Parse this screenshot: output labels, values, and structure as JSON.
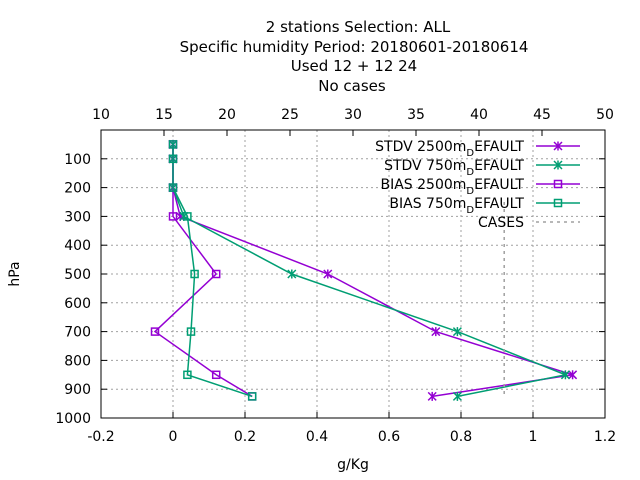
{
  "chart_data": {
    "type": "line",
    "title_lines": [
      "2 stations Selection: ALL",
      "Specific humidity  Period: 20180601-20180614",
      "Used  12 + 12 24",
      "No cases"
    ],
    "xlabel": "g/Kg",
    "ylabel": "hPa",
    "x_range": [
      -0.2,
      1.2
    ],
    "x_ticks": [
      "-0.2",
      "0",
      "0.2",
      "0.4",
      "0.6",
      "0.8",
      "1",
      "1.2"
    ],
    "x2_range": [
      10,
      50
    ],
    "x2_ticks": [
      "10",
      "15",
      "20",
      "25",
      "30",
      "35",
      "40",
      "45",
      "50"
    ],
    "y_range": [
      0,
      1000
    ],
    "y_reversed": true,
    "y_ticks": [
      "100",
      "200",
      "300",
      "400",
      "500",
      "600",
      "700",
      "800",
      "900",
      "1000"
    ],
    "grid": true,
    "legend_position": "top-right",
    "series": [
      {
        "name": "STDV 2500m",
        "name_sub": "D",
        "name_suffix": "EFAULT",
        "color": "#9400d3",
        "marker": "cross",
        "x": [
          0.0,
          0.0,
          0.0,
          0.02,
          0.43,
          0.73,
          1.11,
          0.72
        ],
        "y": [
          50,
          100,
          200,
          300,
          500,
          700,
          850,
          925
        ]
      },
      {
        "name": "STDV 750m",
        "name_sub": "D",
        "name_suffix": "EFAULT",
        "color": "#009e73",
        "marker": "cross",
        "x": [
          0.0,
          0.0,
          0.0,
          0.03,
          0.33,
          0.79,
          1.09,
          0.79
        ],
        "y": [
          50,
          100,
          200,
          300,
          500,
          700,
          850,
          925
        ]
      },
      {
        "name": "BIAS 2500m",
        "name_sub": "D",
        "name_suffix": "EFAULT",
        "color": "#9400d3",
        "marker": "square",
        "x": [
          0.0,
          0.0,
          0.0,
          0.0,
          0.12,
          -0.05,
          0.12,
          0.22
        ],
        "y": [
          50,
          100,
          200,
          300,
          500,
          700,
          850,
          925
        ]
      },
      {
        "name": "BIAS 750m",
        "name_sub": "D",
        "name_suffix": "EFAULT",
        "color": "#009e73",
        "marker": "square",
        "x": [
          0.0,
          0.0,
          0.0,
          0.04,
          0.06,
          0.05,
          0.04,
          0.22
        ],
        "y": [
          50,
          100,
          200,
          300,
          500,
          700,
          850,
          925
        ]
      },
      {
        "name": "CASES",
        "color": "#a0a0a0",
        "marker": "none",
        "dashed": true,
        "axis": "x2",
        "x": [
          42,
          42
        ],
        "y": [
          250,
          925
        ]
      }
    ]
  }
}
